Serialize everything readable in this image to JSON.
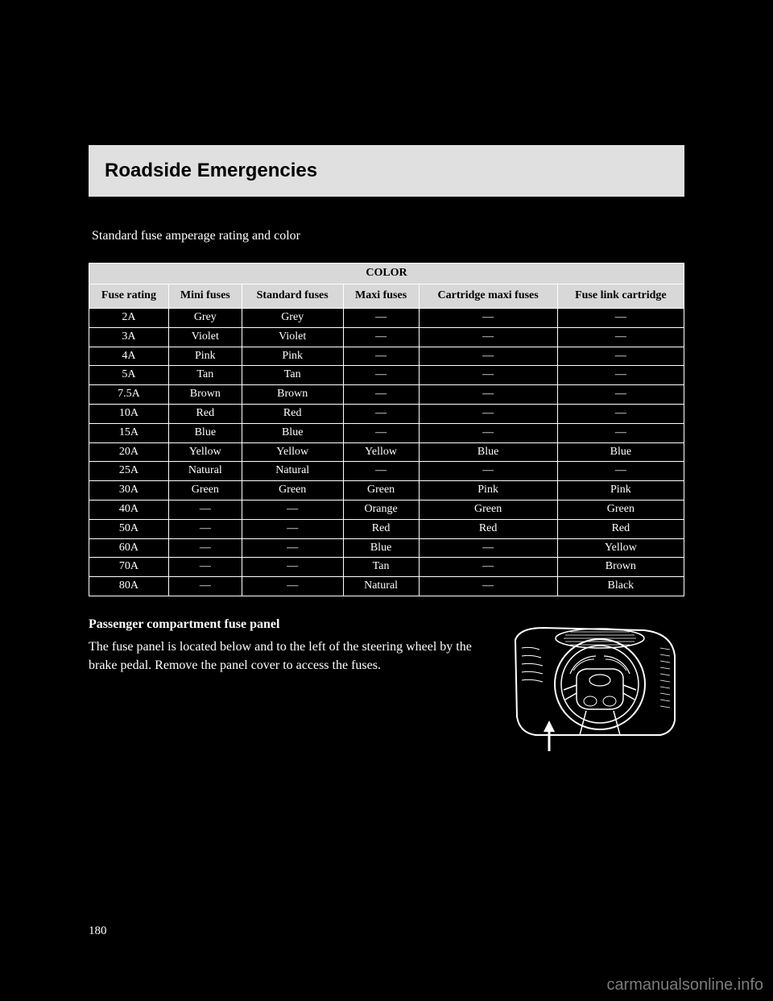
{
  "header": {
    "title": "Roadside Emergencies"
  },
  "intro": "Standard fuse amperage rating and color",
  "table": {
    "super_header": "COLOR",
    "columns": [
      "Fuse rating",
      "Mini fuses",
      "Standard fuses",
      "Maxi fuses",
      "Cartridge maxi fuses",
      "Fuse link cartridge"
    ],
    "rows": [
      [
        "2A",
        "Grey",
        "Grey",
        "—",
        "—",
        "—"
      ],
      [
        "3A",
        "Violet",
        "Violet",
        "—",
        "—",
        "—"
      ],
      [
        "4A",
        "Pink",
        "Pink",
        "—",
        "—",
        "—"
      ],
      [
        "5A",
        "Tan",
        "Tan",
        "—",
        "—",
        "—"
      ],
      [
        "7.5A",
        "Brown",
        "Brown",
        "—",
        "—",
        "—"
      ],
      [
        "10A",
        "Red",
        "Red",
        "—",
        "—",
        "—"
      ],
      [
        "15A",
        "Blue",
        "Blue",
        "—",
        "—",
        "—"
      ],
      [
        "20A",
        "Yellow",
        "Yellow",
        "Yellow",
        "Blue",
        "Blue"
      ],
      [
        "25A",
        "Natural",
        "Natural",
        "—",
        "—",
        "—"
      ],
      [
        "30A",
        "Green",
        "Green",
        "Green",
        "Pink",
        "Pink"
      ],
      [
        "40A",
        "—",
        "—",
        "Orange",
        "Green",
        "Green"
      ],
      [
        "50A",
        "—",
        "—",
        "Red",
        "Red",
        "Red"
      ],
      [
        "60A",
        "—",
        "—",
        "Blue",
        "—",
        "Yellow"
      ],
      [
        "70A",
        "—",
        "—",
        "Tan",
        "—",
        "Brown"
      ],
      [
        "80A",
        "—",
        "—",
        "Natural",
        "—",
        "Black"
      ]
    ]
  },
  "below": {
    "heading": "Passenger compartment fuse panel",
    "text": "The fuse panel is located below and to the left of the steering wheel by the brake pedal. Remove the panel cover to access the fuses."
  },
  "page_number": "180",
  "watermark": "carmanualsonline.info"
}
